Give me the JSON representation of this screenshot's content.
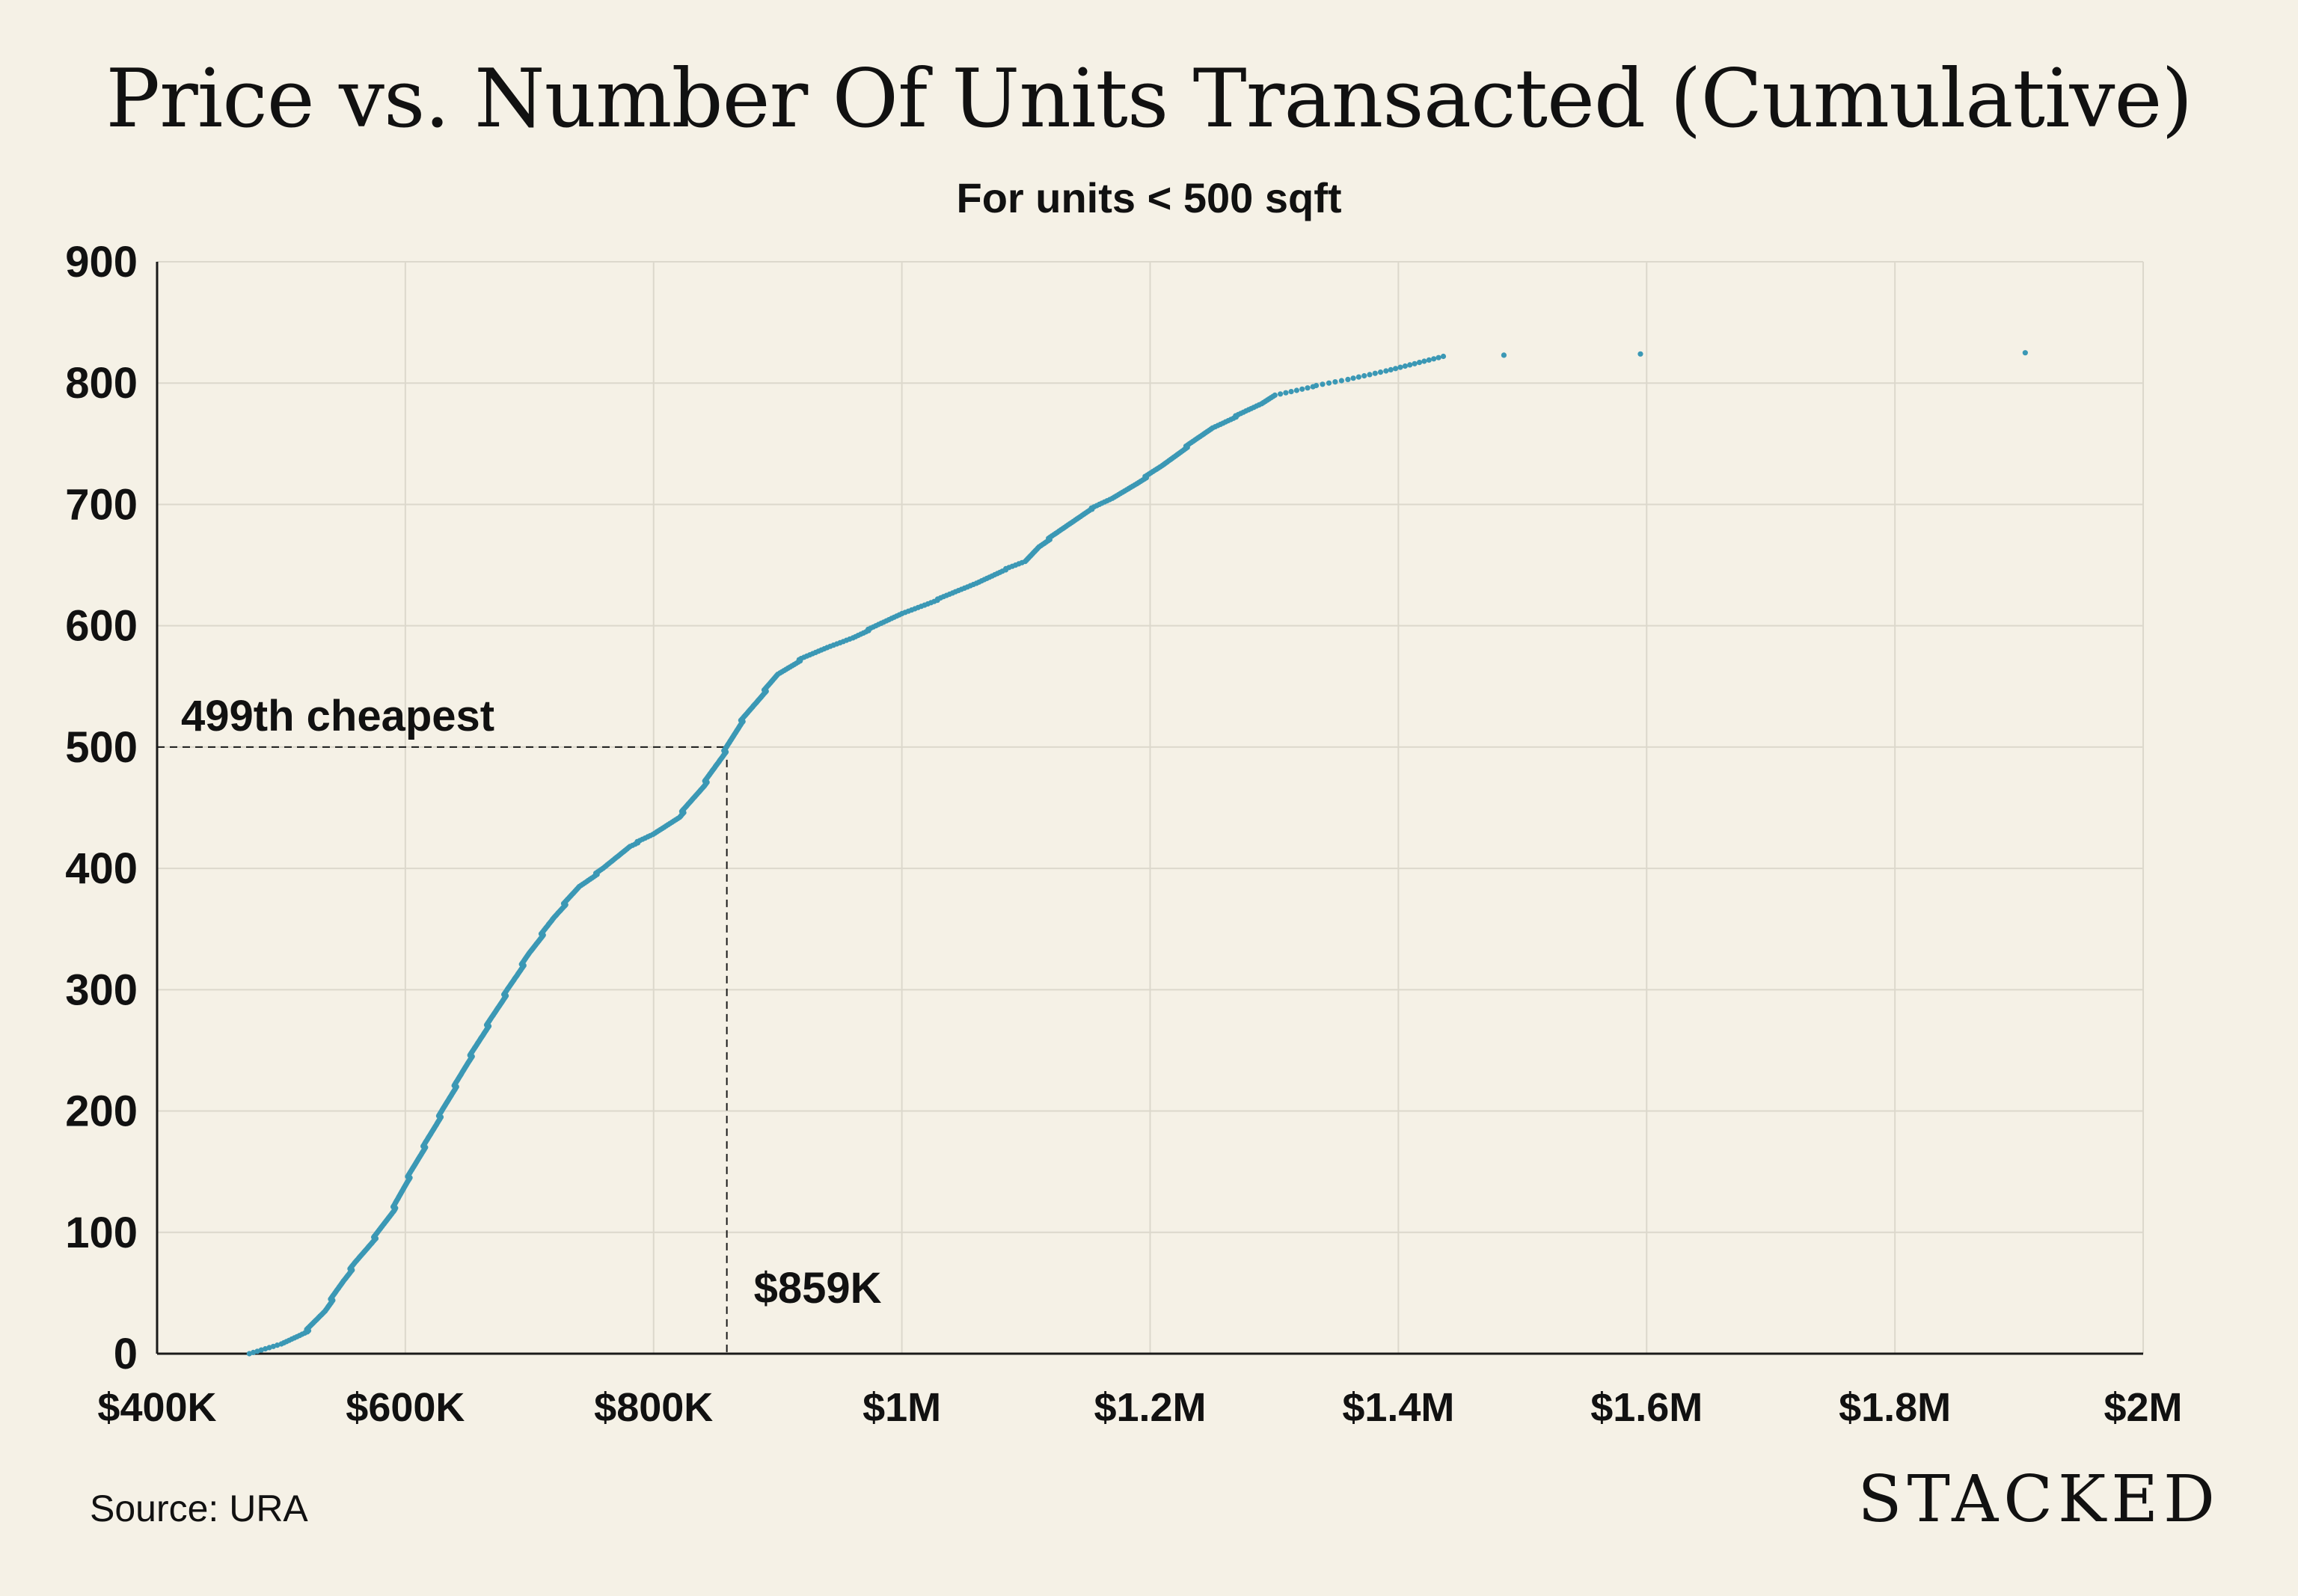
{
  "page": {
    "title": "Price vs. Number Of Units Transacted (Cumulative)",
    "subtitle": "For units < 500 sqft",
    "source": "Source: URA",
    "brand": "STACKED"
  },
  "colors": {
    "background": "#f5f1e6",
    "point": "#3b98b5",
    "grid": "#dcd8cc",
    "axis": "#1a1a1a",
    "text": "#111111"
  },
  "chart_data": {
    "type": "scatter",
    "title": "Price vs. Number Of Units Transacted (Cumulative)",
    "subtitle": "For units < 500 sqft",
    "xlabel": "",
    "ylabel": "",
    "xlim": [
      400000,
      2000000
    ],
    "ylim": [
      0,
      900
    ],
    "x_ticks": [
      {
        "value": 400000,
        "label": "$400K"
      },
      {
        "value": 600000,
        "label": "$600K"
      },
      {
        "value": 800000,
        "label": "$800K"
      },
      {
        "value": 1000000,
        "label": "$1M"
      },
      {
        "value": 1200000,
        "label": "$1.2M"
      },
      {
        "value": 1400000,
        "label": "$1.4M"
      },
      {
        "value": 1600000,
        "label": "$1.6M"
      },
      {
        "value": 1800000,
        "label": "$1.8M"
      },
      {
        "value": 2000000,
        "label": "$2M"
      }
    ],
    "y_ticks": [
      {
        "value": 0,
        "label": "0"
      },
      {
        "value": 100,
        "label": "100"
      },
      {
        "value": 200,
        "label": "200"
      },
      {
        "value": 300,
        "label": "300"
      },
      {
        "value": 400,
        "label": "400"
      },
      {
        "value": 500,
        "label": "500"
      },
      {
        "value": 600,
        "label": "600"
      },
      {
        "value": 700,
        "label": "700"
      },
      {
        "value": 800,
        "label": "800"
      },
      {
        "value": 900,
        "label": "900"
      }
    ],
    "grid": true,
    "legend": "none",
    "curve": {
      "note": "Cumulative count of units by transacted price; one point per transaction",
      "anchors": [
        [
          475000,
          0
        ],
        [
          500000,
          8
        ],
        [
          520000,
          18
        ],
        [
          535000,
          35
        ],
        [
          550000,
          60
        ],
        [
          560000,
          75
        ],
        [
          575000,
          95
        ],
        [
          590000,
          118
        ],
        [
          600000,
          140
        ],
        [
          620000,
          180
        ],
        [
          635000,
          210
        ],
        [
          650000,
          240
        ],
        [
          665000,
          268
        ],
        [
          680000,
          295
        ],
        [
          700000,
          330
        ],
        [
          720000,
          360
        ],
        [
          740000,
          385
        ],
        [
          760000,
          400
        ],
        [
          780000,
          418
        ],
        [
          800000,
          428
        ],
        [
          820000,
          442
        ],
        [
          840000,
          468
        ],
        [
          859000,
          499
        ],
        [
          870000,
          520
        ],
        [
          885000,
          540
        ],
        [
          900000,
          560
        ],
        [
          920000,
          573
        ],
        [
          940000,
          582
        ],
        [
          960000,
          590
        ],
        [
          980000,
          600
        ],
        [
          1000000,
          610
        ],
        [
          1030000,
          622
        ],
        [
          1060000,
          635
        ],
        [
          1080000,
          645
        ],
        [
          1100000,
          653
        ],
        [
          1110000,
          665
        ],
        [
          1130000,
          680
        ],
        [
          1150000,
          695
        ],
        [
          1170000,
          705
        ],
        [
          1190000,
          718
        ],
        [
          1210000,
          732
        ],
        [
          1230000,
          748
        ],
        [
          1250000,
          763
        ],
        [
          1270000,
          773
        ],
        [
          1290000,
          783
        ],
        [
          1300000,
          790
        ],
        [
          1330000,
          797
        ],
        [
          1360000,
          803
        ],
        [
          1390000,
          810
        ],
        [
          1420000,
          818
        ],
        [
          1435000,
          822
        ]
      ],
      "step_units": 1
    },
    "outliers": [
      {
        "x": 1485000,
        "y": 823
      },
      {
        "x": 1595000,
        "y": 824
      },
      {
        "x": 1905000,
        "y": 825
      }
    ],
    "annotations": [
      {
        "label": "499th cheapest",
        "x": 859000,
        "y": 500,
        "type": "horizontal-guide"
      },
      {
        "label": "$859K",
        "x": 859000,
        "y": 0,
        "type": "vertical-guide"
      }
    ]
  }
}
